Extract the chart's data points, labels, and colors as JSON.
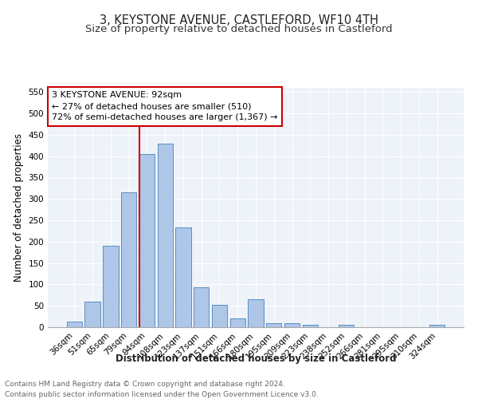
{
  "title": "3, KEYSTONE AVENUE, CASTLEFORD, WF10 4TH",
  "subtitle": "Size of property relative to detached houses in Castleford",
  "xlabel": "Distribution of detached houses by size in Castleford",
  "ylabel": "Number of detached properties",
  "footnote1": "Contains HM Land Registry data © Crown copyright and database right 2024.",
  "footnote2": "Contains public sector information licensed under the Open Government Licence v3.0.",
  "categories": [
    "36sqm",
    "51sqm",
    "65sqm",
    "79sqm",
    "94sqm",
    "108sqm",
    "123sqm",
    "137sqm",
    "151sqm",
    "166sqm",
    "180sqm",
    "195sqm",
    "209sqm",
    "223sqm",
    "238sqm",
    "252sqm",
    "266sqm",
    "281sqm",
    "295sqm",
    "310sqm",
    "324sqm"
  ],
  "values": [
    13,
    60,
    190,
    315,
    405,
    430,
    233,
    93,
    52,
    20,
    65,
    10,
    9,
    5,
    0,
    5,
    0,
    0,
    0,
    0,
    5
  ],
  "bar_color": "#aec6e8",
  "bar_edge_color": "#5a8fc2",
  "property_line_color": "#cc0000",
  "annotation_text": "3 KEYSTONE AVENUE: 92sqm\n← 27% of detached houses are smaller (510)\n72% of semi-detached houses are larger (1,367) →",
  "annotation_box_color": "#cc0000",
  "ylim": [
    0,
    560
  ],
  "yticks": [
    0,
    50,
    100,
    150,
    200,
    250,
    300,
    350,
    400,
    450,
    500,
    550
  ],
  "bg_color": "#eef2f9",
  "grid_color": "#ffffff",
  "title_fontsize": 10.5,
  "subtitle_fontsize": 9.5,
  "axis_label_fontsize": 8.5,
  "tick_fontsize": 7.5,
  "footnote_fontsize": 6.5,
  "annotation_fontsize": 8.0
}
